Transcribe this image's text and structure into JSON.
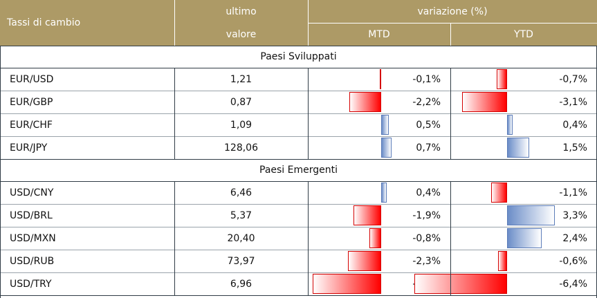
{
  "header": {
    "title": "Tassi di cambio",
    "ultimo_line1": "ultimo",
    "ultimo_line2": "valore",
    "variazione": "variazione (%)",
    "mtd": "MTD",
    "ytd": "YTD"
  },
  "sections": [
    {
      "title": "Paesi Sviluppati",
      "rows": [
        {
          "name": "EUR/USD",
          "value": "1,21",
          "mtd": "-0,1%",
          "ytd": "-0,7%",
          "mtd_num": -0.1,
          "ytd_num": -0.7
        },
        {
          "name": "EUR/GBP",
          "value": "0,87",
          "mtd": "-2,2%",
          "ytd": "-3,1%",
          "mtd_num": -2.2,
          "ytd_num": -3.1
        },
        {
          "name": "EUR/CHF",
          "value": "1,09",
          "mtd": "0,5%",
          "ytd": "0,4%",
          "mtd_num": 0.5,
          "ytd_num": 0.4
        },
        {
          "name": "EUR/JPY",
          "value": "128,06",
          "mtd": "0,7%",
          "ytd": "1,5%",
          "mtd_num": 0.7,
          "ytd_num": 1.5
        }
      ]
    },
    {
      "title": "Paesi Emergenti",
      "rows": [
        {
          "name": "USD/CNY",
          "value": "6,46",
          "mtd": "0,4%",
          "ytd": "-1,1%",
          "mtd_num": 0.4,
          "ytd_num": -1.1
        },
        {
          "name": "USD/BRL",
          "value": "5,37",
          "mtd": "-1,9%",
          "ytd": "3,3%",
          "mtd_num": -1.9,
          "ytd_num": 3.3
        },
        {
          "name": "USD/MXN",
          "value": "20,40",
          "mtd": "-0,8%",
          "ytd": "2,4%",
          "mtd_num": -0.8,
          "ytd_num": 2.4
        },
        {
          "name": "USD/RUB",
          "value": "73,97",
          "mtd": "-2,3%",
          "ytd": "-0,6%",
          "mtd_num": -2.3,
          "ytd_num": -0.6
        },
        {
          "name": "USD/TRY",
          "value": "6,96",
          "mtd": "-4,7%",
          "ytd": "-6,4%",
          "mtd_num": -4.7,
          "ytd_num": -6.4
        }
      ]
    }
  ],
  "colors": {
    "header_bg": "#ad9a66",
    "positive_bar": "#6b8dc8",
    "negative_bar": "#ff0000"
  },
  "chart_data": {
    "type": "table",
    "columns": [
      "Tassi di cambio",
      "ultimo valore",
      "MTD",
      "YTD"
    ],
    "categories": [
      "EUR/USD",
      "EUR/GBP",
      "EUR/CHF",
      "EUR/JPY",
      "USD/CNY",
      "USD/BRL",
      "USD/MXN",
      "USD/RUB",
      "USD/TRY"
    ],
    "series": [
      {
        "name": "ultimo valore",
        "values": [
          1.21,
          0.87,
          1.09,
          128.06,
          6.46,
          5.37,
          20.4,
          73.97,
          6.96
        ]
      },
      {
        "name": "MTD",
        "values": [
          -0.1,
          -2.2,
          0.5,
          0.7,
          0.4,
          -1.9,
          -0.8,
          -2.3,
          -4.7
        ]
      },
      {
        "name": "YTD",
        "values": [
          -0.7,
          -3.1,
          0.4,
          1.5,
          -1.1,
          3.3,
          2.4,
          -0.6,
          -6.4
        ]
      }
    ]
  }
}
